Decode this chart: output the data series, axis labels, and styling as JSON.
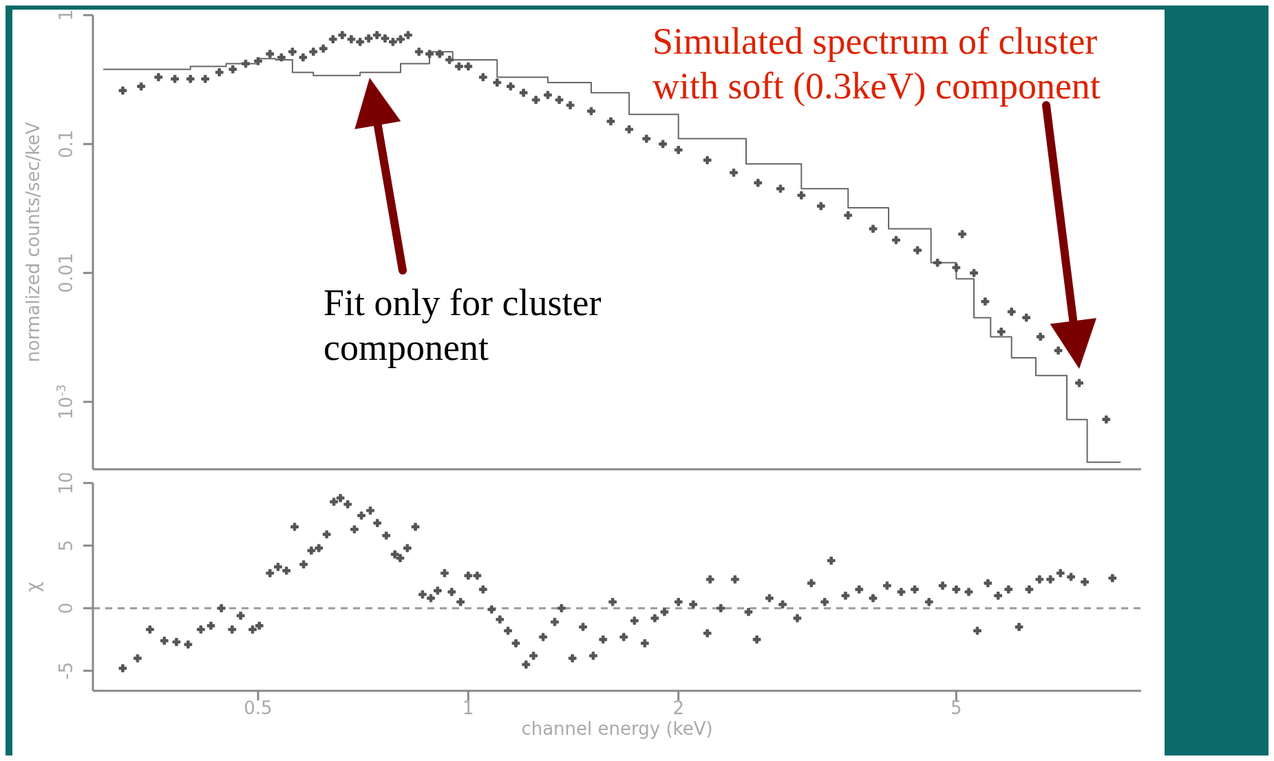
{
  "chart_data": [
    {
      "type": "scatter",
      "ylabel": "normalized counts/sec/keV",
      "log": "xy",
      "xlim": [
        0.29,
        9.2
      ],
      "xticks": [
        0.5,
        1,
        2,
        5
      ],
      "ylim": [
        0.0003,
        1
      ],
      "yticks": [
        1,
        0.1,
        0.01,
        {
          "value": 0.001,
          "label": "10$^{-3}$"
        }
      ],
      "tick_labels": "y",
      "marker": "cross",
      "series": [
        {
          "type": "scatter",
          "color": "#555555",
          "x": [
            0.32,
            0.34,
            0.36,
            0.38,
            0.4,
            0.42,
            0.44,
            0.46,
            0.48,
            0.5,
            0.52,
            0.54,
            0.56,
            0.58,
            0.6,
            0.62,
            0.64,
            0.66,
            0.68,
            0.7,
            0.72,
            0.74,
            0.76,
            0.78,
            0.8,
            0.82,
            0.85,
            0.88,
            0.91,
            0.94,
            0.97,
            1.0,
            1.05,
            1.1,
            1.15,
            1.2,
            1.25,
            1.3,
            1.35,
            1.4,
            1.5,
            1.6,
            1.7,
            1.8,
            1.9,
            2.0,
            2.2,
            2.4,
            2.6,
            2.8,
            3.0,
            3.2,
            3.5,
            3.8,
            4.1,
            4.4,
            4.7,
            5.0,
            5.1,
            5.3,
            5.5,
            5.8,
            6.0,
            6.3,
            6.6,
            7.0,
            7.5,
            8.2
          ],
          "values": [
            0.26,
            0.28,
            0.33,
            0.32,
            0.32,
            0.32,
            0.36,
            0.38,
            0.42,
            0.44,
            0.5,
            0.47,
            0.52,
            0.47,
            0.52,
            0.55,
            0.65,
            0.7,
            0.65,
            0.62,
            0.66,
            0.7,
            0.66,
            0.62,
            0.65,
            0.7,
            0.52,
            0.5,
            0.5,
            0.45,
            0.4,
            0.4,
            0.33,
            0.3,
            0.28,
            0.25,
            0.22,
            0.24,
            0.22,
            0.2,
            0.18,
            0.15,
            0.13,
            0.11,
            0.1,
            0.09,
            0.075,
            0.06,
            0.05,
            0.045,
            0.04,
            0.033,
            0.028,
            0.022,
            0.018,
            0.015,
            0.012,
            0.011,
            0.02,
            0.01,
            0.006,
            0.0035,
            0.005,
            0.0045,
            0.0032,
            0.0025,
            0.0014,
            0.00073
          ]
        },
        {
          "type": "step",
          "color": "#666666",
          "marker": "none",
          "x": [
            0.3,
            0.4,
            0.45,
            0.5,
            0.53,
            0.56,
            0.6,
            0.7,
            0.8,
            0.88,
            0.95,
            1.1,
            1.3,
            1.5,
            1.7,
            2.0,
            2.5,
            3.0,
            3.5,
            4.0,
            4.6,
            5.0,
            5.3,
            5.6,
            6.0,
            6.5,
            7.2,
            7.7,
            8.6
          ],
          "values": [
            0.38,
            0.4,
            0.42,
            0.46,
            0.45,
            0.36,
            0.34,
            0.36,
            0.42,
            0.52,
            0.45,
            0.33,
            0.3,
            0.25,
            0.17,
            0.11,
            0.07,
            0.045,
            0.032,
            0.022,
            0.012,
            0.009,
            0.0045,
            0.0032,
            0.0022,
            0.0016,
            0.00073,
            0.00034,
            0.00034
          ]
        }
      ],
      "annotations": [
        "Fit only for cluster component",
        "Simulated spectrum of cluster with soft (0.3keV) component"
      ]
    },
    {
      "type": "scatter",
      "xlabel": "channel energy (keV)",
      "ylabel": "χ",
      "log": "x",
      "xlim": [
        0.29,
        9.2
      ],
      "xticks": [
        0.5,
        1,
        2,
        5
      ],
      "ylim": [
        -6.6,
        10
      ],
      "yticks": [
        10,
        5,
        0,
        -5
      ],
      "marker": "cross",
      "ref_lines": [
        {
          "axis": "y",
          "value": 0,
          "color": "#999999",
          "line_style": "dashed"
        }
      ],
      "series": [
        {
          "type": "scatter",
          "color": "#555555",
          "x": [
            0.32,
            0.336,
            0.35,
            0.367,
            0.382,
            0.397,
            0.414,
            0.428,
            0.443,
            0.459,
            0.472,
            0.491,
            0.502,
            0.52,
            0.534,
            0.549,
            0.564,
            0.581,
            0.596,
            0.611,
            0.627,
            0.642,
            0.656,
            0.672,
            0.687,
            0.703,
            0.724,
            0.741,
            0.763,
            0.785,
            0.799,
            0.818,
            0.84,
            0.86,
            0.884,
            0.904,
            0.925,
            0.947,
            0.975,
            1.0,
            1.03,
            1.05,
            1.08,
            1.11,
            1.14,
            1.17,
            1.21,
            1.24,
            1.28,
            1.33,
            1.36,
            1.41,
            1.46,
            1.51,
            1.56,
            1.61,
            1.67,
            1.73,
            1.79,
            1.85,
            1.91,
            2.0,
            2.1,
            2.2,
            2.22,
            2.3,
            2.41,
            2.52,
            2.59,
            2.7,
            2.82,
            2.96,
            3.1,
            3.24,
            3.31,
            3.47,
            3.63,
            3.8,
            3.98,
            4.17,
            4.36,
            4.57,
            4.78,
            5.0,
            5.21,
            5.36,
            5.55,
            5.74,
            5.94,
            6.15,
            6.36,
            6.58,
            6.82,
            7.05,
            7.3,
            7.64,
            8.37
          ],
          "values": [
            -4.8,
            -4.0,
            -1.7,
            -2.6,
            -2.7,
            -2.9,
            -1.7,
            -1.4,
            0,
            -1.7,
            -0.6,
            -1.7,
            -1.4,
            2.8,
            3.3,
            3.0,
            6.5,
            3.5,
            4.6,
            4.8,
            5.9,
            8.5,
            8.8,
            8.3,
            6.3,
            7.4,
            7.8,
            6.8,
            5.8,
            4.3,
            4.0,
            4.8,
            6.5,
            1.1,
            0.8,
            1.4,
            2.8,
            1.3,
            0.5,
            2.6,
            2.6,
            1.5,
            -0.1,
            -0.9,
            -1.8,
            -2.8,
            -4.5,
            -3.8,
            -2.3,
            -1.1,
            0,
            -4.0,
            -1.5,
            -3.8,
            -2.5,
            0.5,
            -2.3,
            -1.0,
            -2.8,
            -0.8,
            -0.3,
            0.5,
            0.3,
            -2.0,
            2.3,
            0,
            2.3,
            -0.3,
            -2.5,
            0.8,
            0.3,
            -0.8,
            2.0,
            0.5,
            3.8,
            1.0,
            1.5,
            0.8,
            1.8,
            1.3,
            1.5,
            0.5,
            1.8,
            1.5,
            1.3,
            -1.8,
            2.0,
            1.0,
            1.5,
            -1.5,
            1.5,
            2.3,
            2.3,
            2.8,
            2.5,
            2.1,
            2.4
          ]
        }
      ]
    }
  ]
}
